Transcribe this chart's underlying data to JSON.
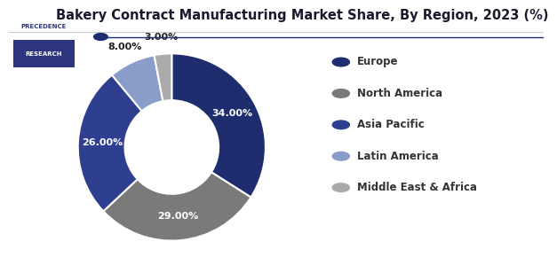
{
  "title": "Bakery Contract Manufacturing Market Share, By Region, 2023 (%)",
  "labels": [
    "Europe",
    "North America",
    "Asia Pacific",
    "Latin America",
    "Middle East & Africa"
  ],
  "values": [
    34.0,
    29.0,
    26.0,
    8.0,
    3.0
  ],
  "colors": [
    "#1e2d6e",
    "#7a7a7a",
    "#2e3f8f",
    "#8a9cc8",
    "#aaaaaa"
  ],
  "pct_labels": [
    "34.00%",
    "29.00%",
    "26.00%",
    "8.00%",
    "3.00%"
  ],
  "background_color": "#ffffff",
  "title_color": "#1a1a2e",
  "title_fontsize": 10.5,
  "legend_fontsize": 8.5,
  "pct_fontsize": 8,
  "wedge_linewidth": 1.5,
  "wedge_edgecolor": "#ffffff",
  "start_angle": 90,
  "donut_width": 0.5
}
